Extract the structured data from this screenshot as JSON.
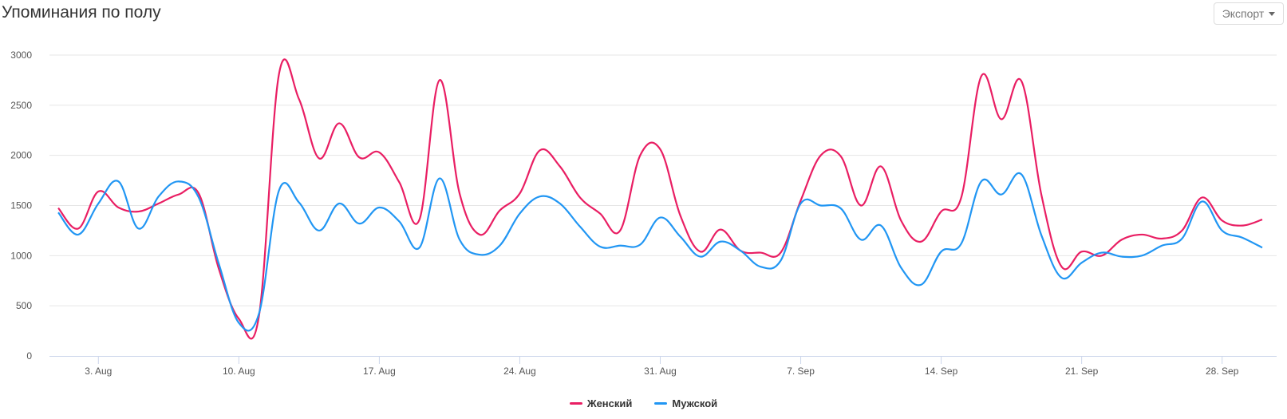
{
  "header": {
    "title": "Упоминания по полу",
    "export_label": "Экспорт"
  },
  "chart_data": {
    "type": "line",
    "title": "Упоминания по полу",
    "xlabel": "",
    "ylabel": "",
    "ylim": [
      0,
      3000
    ],
    "yticks": [
      0,
      500,
      1000,
      1500,
      2000,
      2500,
      3000
    ],
    "x_start": "1 Aug",
    "x_end": "30 Sep",
    "xtick_labels": [
      "3. Aug",
      "10. Aug",
      "17. Aug",
      "24. Aug",
      "31. Aug",
      "7. Sep",
      "14. Sep",
      "21. Sep",
      "28. Sep"
    ],
    "xtick_day_index": [
      2,
      9,
      16,
      23,
      30,
      37,
      44,
      51,
      58
    ],
    "grid": true,
    "legend_placement": "bottom-center",
    "series": [
      {
        "name": "Женский",
        "color": "#e91e63",
        "values": [
          1475,
          1270,
          1640,
          1480,
          1440,
          1520,
          1610,
          1620,
          870,
          370,
          395,
          2810,
          2560,
          1970,
          2320,
          1980,
          2030,
          1730,
          1360,
          2750,
          1620,
          1210,
          1450,
          1620,
          2050,
          1890,
          1580,
          1420,
          1250,
          2000,
          2060,
          1400,
          1040,
          1260,
          1050,
          1030,
          1030,
          1550,
          2000,
          1990,
          1500,
          1890,
          1350,
          1140,
          1440,
          1580,
          2790,
          2360,
          2740,
          1600,
          890,
          1040,
          1000,
          1160,
          1210,
          1170,
          1250,
          1580,
          1350,
          1300,
          1360
        ]
      },
      {
        "name": "Мужской",
        "color": "#2196f3",
        "values": [
          1430,
          1210,
          1520,
          1740,
          1270,
          1590,
          1740,
          1580,
          920,
          330,
          420,
          1650,
          1530,
          1250,
          1520,
          1320,
          1480,
          1340,
          1080,
          1770,
          1160,
          1010,
          1100,
          1420,
          1590,
          1520,
          1290,
          1090,
          1100,
          1110,
          1380,
          1190,
          990,
          1140,
          1050,
          890,
          950,
          1520,
          1500,
          1470,
          1160,
          1300,
          880,
          710,
          1040,
          1120,
          1740,
          1610,
          1810,
          1200,
          780,
          930,
          1030,
          990,
          1000,
          1100,
          1170,
          1540,
          1250,
          1180,
          1080
        ]
      }
    ]
  }
}
